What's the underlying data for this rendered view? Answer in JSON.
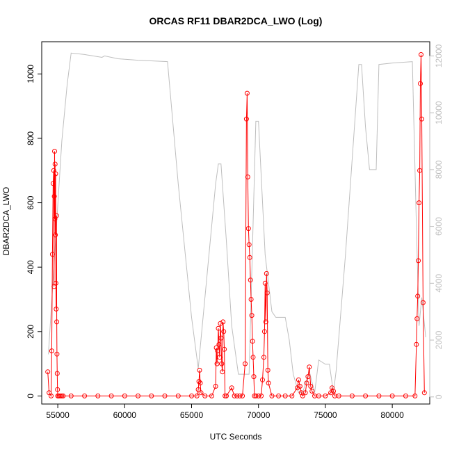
{
  "chart_data": {
    "type": "line",
    "title": "ORCAS RF11 DBAR2DCA_LWO (Log)",
    "xlabel": "UTC Seconds",
    "ylabel": "DBAR2DCA_LWO",
    "xlim": [
      53800,
      82800
    ],
    "ylim": [
      -25,
      1100
    ],
    "y2lim": [
      -250,
      12500
    ],
    "x_ticks": [
      55000,
      60000,
      65000,
      70000,
      75000,
      80000
    ],
    "y_ticks": [
      0,
      200,
      400,
      600,
      800,
      1000
    ],
    "y2_ticks": [
      0,
      2000,
      4000,
      6000,
      8000,
      10000,
      12000
    ],
    "grid": false,
    "colors": {
      "primary": "#ff0000",
      "secondary": "#bebebe",
      "axis": "#000000"
    },
    "series": [
      {
        "axis": "right",
        "style": "line",
        "color": "#bebebe",
        "x": [
          54300,
          54700,
          55300,
          55700,
          56000,
          57000,
          58300,
          58500,
          59500,
          61000,
          63200,
          64000,
          65000,
          65500,
          66800,
          67000,
          67200,
          67600,
          68000,
          68500,
          69300,
          69800,
          70000,
          70500,
          71000,
          71300,
          71600,
          72000,
          72300,
          72600,
          73000,
          73300,
          73800,
          74200,
          74500,
          75000,
          75300,
          75600,
          75800,
          76500,
          77500,
          77700,
          78000,
          78300,
          78500,
          78800,
          79000,
          80000,
          81500,
          81800,
          82000,
          82200,
          82500
        ],
        "y": [
          1500,
          4500,
          9000,
          11000,
          12100,
          12050,
          11950,
          12000,
          11900,
          11850,
          11800,
          7500,
          2800,
          1000,
          7500,
          8200,
          8200,
          5500,
          2500,
          800,
          800,
          9700,
          9700,
          5000,
          3000,
          2800,
          2800,
          2800,
          2000,
          800,
          150,
          150,
          900,
          150,
          1300,
          1150,
          1150,
          150,
          900,
          5000,
          11700,
          11700,
          9500,
          8000,
          8000,
          8000,
          11700,
          11750,
          11800,
          6000,
          2500,
          3500,
          2100
        ]
      },
      {
        "axis": "left",
        "style": "line+points",
        "color": "#ff0000",
        "x": [
          54250,
          54350,
          54500,
          54550,
          54600,
          54650,
          54700,
          54720,
          54740,
          54760,
          54780,
          54800,
          54820,
          54840,
          54860,
          54880,
          54900,
          54920,
          54940,
          54960,
          54980,
          55000,
          55020,
          55100,
          55200,
          55300,
          55400,
          56000,
          57000,
          58000,
          59000,
          60000,
          61000,
          62000,
          63000,
          64000,
          65000,
          65400,
          65500,
          65550,
          65600,
          65650,
          65700,
          66000,
          66500,
          66800,
          66850,
          66900,
          66950,
          67000,
          67050,
          67100,
          67150,
          67200,
          67250,
          67300,
          67350,
          67400,
          67450,
          67500,
          67600,
          68000,
          68200,
          68400,
          68600,
          68800,
          69000,
          69100,
          69150,
          69200,
          69250,
          69300,
          69350,
          69400,
          69450,
          69500,
          69550,
          69600,
          69650,
          69700,
          69800,
          70000,
          70200,
          70300,
          70400,
          70450,
          70500,
          70550,
          70600,
          70650,
          70700,
          70750,
          71000,
          71500,
          72000,
          72500,
          72900,
          73000,
          73100,
          73200,
          73300,
          73500,
          73600,
          73700,
          73800,
          73900,
          74000,
          74200,
          74500,
          75000,
          75400,
          75500,
          75600,
          75700,
          76000,
          77000,
          78000,
          79000,
          80000,
          81000,
          81700,
          81800,
          81850,
          81900,
          81950,
          82000,
          82050,
          82100,
          82150,
          82200,
          82300,
          82400
        ],
        "y": [
          75,
          10,
          0,
          140,
          440,
          660,
          700,
          340,
          620,
          760,
          550,
          720,
          500,
          690,
          350,
          270,
          560,
          230,
          130,
          70,
          20,
          0,
          0,
          0,
          0,
          0,
          0,
          0,
          0,
          0,
          0,
          0,
          0,
          0,
          0,
          0,
          0,
          0,
          20,
          45,
          80,
          40,
          10,
          0,
          0,
          30,
          150,
          100,
          140,
          210,
          160,
          120,
          225,
          180,
          100,
          75,
          230,
          200,
          145,
          0,
          0,
          25,
          0,
          0,
          0,
          0,
          100,
          860,
          940,
          680,
          520,
          470,
          430,
          360,
          300,
          250,
          170,
          120,
          60,
          0,
          0,
          0,
          0,
          50,
          120,
          200,
          350,
          230,
          380,
          320,
          80,
          40,
          0,
          0,
          0,
          0,
          25,
          50,
          30,
          10,
          0,
          10,
          40,
          60,
          90,
          30,
          15,
          0,
          0,
          0,
          10,
          25,
          15,
          0,
          0,
          0,
          0,
          0,
          0,
          0,
          0,
          160,
          240,
          310,
          420,
          600,
          700,
          970,
          1060,
          860,
          290,
          10
        ]
      }
    ]
  }
}
